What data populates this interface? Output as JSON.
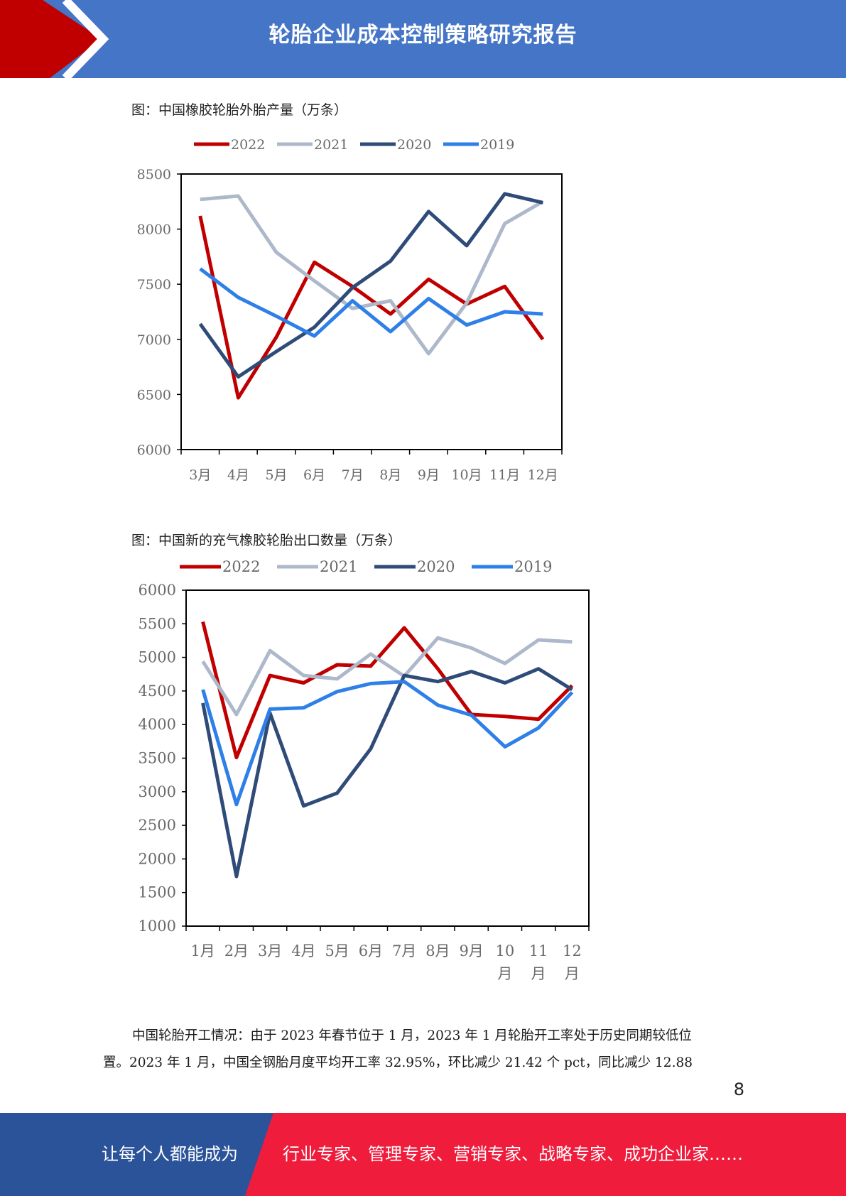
{
  "header": {
    "title": "轮胎企业成本控制策略研究报告"
  },
  "figures": [
    {
      "caption": "图：中国橡胶轮胎外胎产量（万条）"
    },
    {
      "caption": "图：中国新的充气橡胶轮胎出口数量（万条）"
    }
  ],
  "chart_data": [
    {
      "type": "line",
      "title": "图：中国橡胶轮胎外胎产量（万条）",
      "categories": [
        "3月",
        "4月",
        "5月",
        "6月",
        "7月",
        "8月",
        "9月",
        "10月",
        "11月",
        "12月"
      ],
      "ylim": [
        6000,
        8500
      ],
      "yticks": [
        6000,
        6500,
        7000,
        7500,
        8000,
        8500
      ],
      "legend_position": "top",
      "series": [
        {
          "name": "2022",
          "color": "#c00000",
          "values": [
            8120,
            6470,
            7020,
            7700,
            7480,
            7230,
            7545,
            7320,
            7480,
            7000
          ]
        },
        {
          "name": "2021",
          "color": "#adb9ca",
          "values": [
            8270,
            8300,
            7790,
            7530,
            7280,
            7350,
            6870,
            7330,
            8050,
            8250
          ]
        },
        {
          "name": "2020",
          "color": "#2f4b78",
          "values": [
            7140,
            6660,
            6890,
            7110,
            7470,
            7710,
            8160,
            7850,
            8320,
            8240
          ]
        },
        {
          "name": "2019",
          "color": "#2e7fe8",
          "values": [
            7640,
            7380,
            7210,
            7030,
            7350,
            7070,
            7370,
            7130,
            7250,
            7230
          ]
        }
      ]
    },
    {
      "type": "line",
      "title": "图：中国新的充气橡胶轮胎出口数量（万条）",
      "categories": [
        "1月",
        "2月",
        "3月",
        "4月",
        "5月",
        "6月",
        "7月",
        "8月",
        "9月",
        "10月",
        "11月",
        "12月"
      ],
      "ylim": [
        1000,
        6000
      ],
      "yticks": [
        1000,
        1500,
        2000,
        2500,
        3000,
        3500,
        4000,
        4500,
        5000,
        5500,
        6000
      ],
      "legend_position": "top",
      "series": [
        {
          "name": "2022",
          "color": "#c00000",
          "values": [
            5530,
            3510,
            4730,
            4620,
            4890,
            4870,
            5440,
            4830,
            4150,
            4120,
            4080,
            4580
          ]
        },
        {
          "name": "2021",
          "color": "#adb9ca",
          "values": [
            4940,
            4150,
            5100,
            4730,
            4680,
            5050,
            4720,
            5290,
            5140,
            4910,
            5260,
            5230
          ]
        },
        {
          "name": "2020",
          "color": "#2f4b78",
          "values": [
            4320,
            1740,
            4170,
            2790,
            2980,
            3640,
            4730,
            4640,
            4790,
            4620,
            4830,
            4520
          ]
        },
        {
          "name": "2019",
          "color": "#2e7fe8",
          "values": [
            4520,
            2810,
            4230,
            4250,
            4490,
            4610,
            4640,
            4290,
            4140,
            3670,
            3950,
            4480
          ]
        }
      ]
    }
  ],
  "paragraph": {
    "line1": "中国轮胎开工情况：由于 2023 年春节位于 1 月，2023 年 1 月轮胎开工率处于历史同期较低位",
    "line2": "置。2023 年 1 月，中国全钢胎月度平均开工率 32.95%，环比减少 21.42 个 pct，同比减少 12.88"
  },
  "page_number": "8",
  "footer": {
    "left_text": "让每个人都能成为",
    "right_text": "行业专家、管理专家、营销专家、战略专家、成功企业家……"
  },
  "colors": {
    "header_blue": "#4575c6",
    "accent_red": "#c00000",
    "footer_blue": "#2b5399",
    "footer_red": "#ef1c3c"
  }
}
